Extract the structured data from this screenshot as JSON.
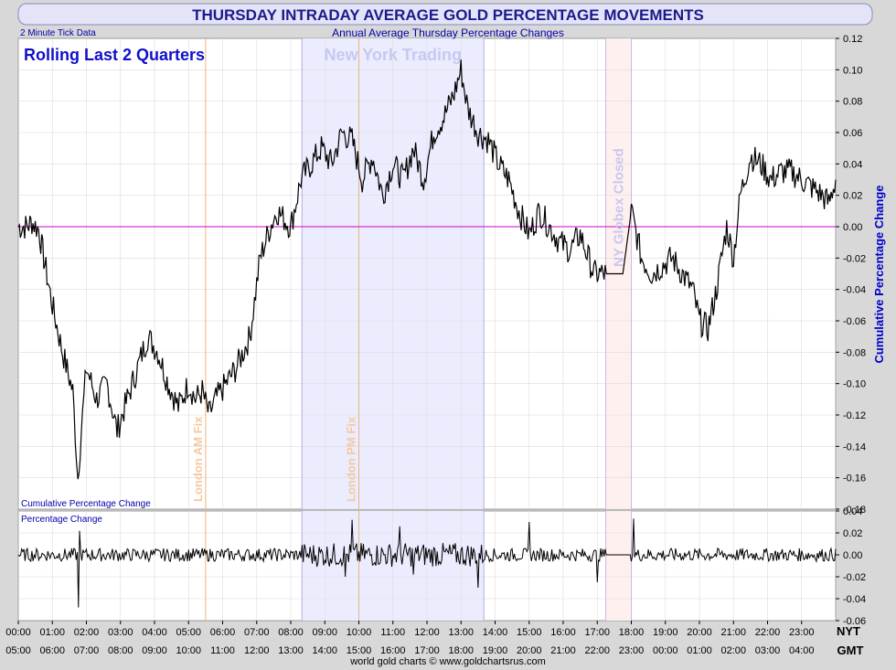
{
  "header": {
    "title": "THURSDAY INTRADAY AVERAGE GOLD PERCENTAGE MOVEMENTS",
    "tick_note": "2 Minute Tick Data",
    "subtitle": "Annual Average Thursday Percentage Changes",
    "period": "Rolling Last 2 Quarters",
    "footer": "world gold charts © www.goldchartsrus.com"
  },
  "annotations": {
    "ny_trading": "New York Trading",
    "london_am": "London AM Fix",
    "london_pm": "London PM Fix",
    "globex_closed": "NY Globex Closed"
  },
  "colors": {
    "title": "#1a1a8c",
    "series": "#000000",
    "zero_line": "#cc00cc",
    "ny_band": "#ececff",
    "globex_band": "#fff0f0",
    "fix_line": "#f0b27a",
    "fix_text": "#f5c9a0",
    "band_text": "#c8c8f0",
    "axis_label": "#0000cc"
  },
  "chart_data": [
    {
      "type": "line",
      "name": "Cumulative Percentage Change",
      "ylabel": "Cumulative Percentage Change",
      "ylim": [
        -0.18,
        0.12
      ],
      "yticks": [
        "0.12",
        "0.10",
        "0.08",
        "0.06",
        "0.04",
        "0.02",
        "0.00",
        "-0.02",
        "-0.04",
        "-0.06",
        "-0.08",
        "-0.10",
        "-0.12",
        "-0.14",
        "-0.16",
        "-0.18"
      ],
      "grid": true,
      "x_hours_nyt": [
        0,
        0.25,
        0.4,
        0.6,
        0.75,
        1.0,
        1.3,
        1.6,
        1.75,
        1.85,
        2.0,
        2.3,
        2.6,
        2.9,
        3.2,
        3.5,
        3.8,
        4.1,
        4.4,
        4.7,
        5.0,
        5.2,
        5.4,
        5.6,
        5.8,
        6.1,
        6.4,
        6.8,
        7.1,
        7.4,
        7.6,
        8.0,
        8.3,
        8.6,
        8.9,
        9.2,
        9.5,
        9.8,
        10.1,
        10.4,
        10.7,
        11.0,
        11.3,
        11.6,
        11.9,
        12.2,
        12.5,
        12.8,
        13.0,
        13.2,
        13.5,
        13.8,
        14.1,
        14.4,
        14.7,
        15.0,
        15.3,
        15.6,
        15.9,
        16.2,
        16.5,
        16.9,
        17.2,
        17.5,
        17.75,
        18.0,
        18.3,
        18.6,
        18.9,
        19.2,
        19.5,
        19.8,
        20.0,
        20.25,
        20.5,
        20.8,
        21.0,
        21.2,
        21.5,
        21.8,
        22.1,
        22.4,
        22.7,
        23.0,
        23.3,
        23.6,
        23.8,
        24.0
      ],
      "y_values": [
        0.0,
        0.0,
        0.003,
        -0.002,
        -0.02,
        -0.05,
        -0.08,
        -0.105,
        -0.16,
        -0.13,
        -0.09,
        -0.11,
        -0.1,
        -0.13,
        -0.11,
        -0.09,
        -0.07,
        -0.08,
        -0.1,
        -0.115,
        -0.1,
        -0.11,
        -0.105,
        -0.12,
        -0.11,
        -0.1,
        -0.09,
        -0.07,
        -0.02,
        0.0,
        0.01,
        0.0,
        0.03,
        0.04,
        0.05,
        0.04,
        0.06,
        0.055,
        0.03,
        0.045,
        0.02,
        0.04,
        0.03,
        0.05,
        0.03,
        0.06,
        0.07,
        0.085,
        0.1,
        0.075,
        0.06,
        0.055,
        0.04,
        0.03,
        0.01,
        -0.005,
        0.01,
        0.0,
        -0.01,
        -0.015,
        -0.005,
        -0.03,
        -0.03,
        -0.03,
        -0.03,
        0.01,
        -0.02,
        -0.03,
        -0.025,
        -0.02,
        -0.03,
        -0.04,
        -0.06,
        -0.065,
        -0.04,
        0.0,
        -0.02,
        0.02,
        0.045,
        0.04,
        0.03,
        0.035,
        0.035,
        0.03,
        0.025,
        0.02,
        0.015,
        0.03
      ]
    },
    {
      "type": "line",
      "name": "Percentage Change",
      "ylim": [
        -0.06,
        0.04
      ],
      "yticks": [
        "0.04",
        "0.02",
        "0.00",
        "-0.02",
        "-0.04",
        "-0.06"
      ],
      "grid": true,
      "spikes": [
        {
          "x": 1.75,
          "y": -0.048
        },
        {
          "x": 1.8,
          "y": 0.022
        },
        {
          "x": 9.8,
          "y": 0.032
        },
        {
          "x": 9.6,
          "y": -0.02
        },
        {
          "x": 11.2,
          "y": 0.026
        },
        {
          "x": 11.6,
          "y": -0.018
        },
        {
          "x": 13.5,
          "y": -0.03
        },
        {
          "x": 15.0,
          "y": 0.03
        },
        {
          "x": 17.0,
          "y": -0.025
        },
        {
          "x": 18.05,
          "y": 0.033
        }
      ]
    }
  ],
  "x_axis": {
    "nyt_label": "NYT",
    "gmt_label": "GMT",
    "nyt_ticks": [
      "00:00",
      "01:00",
      "02:00",
      "03:00",
      "04:00",
      "05:00",
      "06:00",
      "07:00",
      "08:00",
      "09:00",
      "10:00",
      "11:00",
      "12:00",
      "13:00",
      "14:00",
      "15:00",
      "16:00",
      "17:00",
      "18:00",
      "19:00",
      "20:00",
      "21:00",
      "22:00",
      "23:00"
    ],
    "gmt_ticks": [
      "05:00",
      "06:00",
      "07:00",
      "08:00",
      "09:00",
      "10:00",
      "11:00",
      "12:00",
      "13:00",
      "14:00",
      "15:00",
      "16:00",
      "17:00",
      "18:00",
      "19:00",
      "20:00",
      "21:00",
      "22:00",
      "23:00",
      "00:00",
      "01:00",
      "02:00",
      "03:00",
      "04:00"
    ]
  },
  "marker_hours_nyt": {
    "london_am": 5.5,
    "london_pm": 10.0,
    "ny_start": 8.33,
    "ny_end": 13.67,
    "globex_start": 17.25,
    "globex_end": 18.0
  }
}
